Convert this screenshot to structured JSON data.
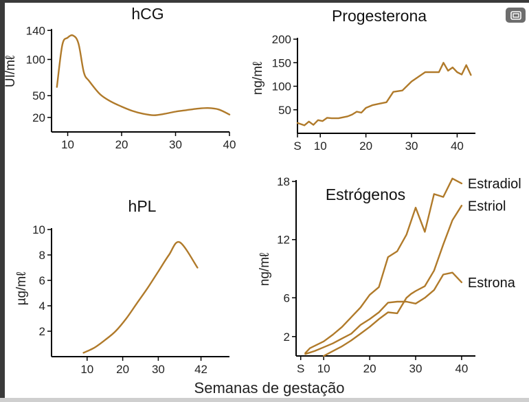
{
  "xlabel": "Semanas de gestação",
  "line_color": "#b07a2a",
  "overlay_button": {
    "icon": "picture-in-picture-icon"
  },
  "chart_data": [
    {
      "id": "hcg",
      "type": "line",
      "title": "hCG",
      "ylabel": "UI/mℓ",
      "xlim": [
        7,
        40
      ],
      "ylim": [
        0,
        145
      ],
      "xticks": [
        10,
        20,
        30,
        40
      ],
      "xtick_labels": [
        "10",
        "20",
        "30",
        "40"
      ],
      "yticks": [
        20,
        50,
        100,
        140
      ],
      "ytick_labels": [
        "20",
        "50",
        "100",
        "140"
      ],
      "series": [
        {
          "label": "",
          "x": [
            8,
            9,
            10,
            11,
            12,
            13,
            14,
            16,
            18,
            20,
            22,
            24,
            26,
            28,
            30,
            32,
            34,
            36,
            38,
            40
          ],
          "y": [
            62,
            120,
            130,
            133,
            122,
            82,
            70,
            52,
            42,
            35,
            29,
            25,
            23,
            25,
            28,
            30,
            32,
            33,
            31,
            24
          ]
        }
      ]
    },
    {
      "id": "progesterona",
      "type": "line",
      "title": "Progesterona",
      "ylabel": "ng/mℓ",
      "xlim": [
        5,
        44
      ],
      "ylim": [
        0,
        200
      ],
      "xticks": [
        5,
        10,
        20,
        30,
        40
      ],
      "xtick_labels": [
        "S",
        "10",
        "20",
        "30",
        "40"
      ],
      "yticks": [
        50,
        100,
        150,
        200
      ],
      "ytick_labels": [
        "50",
        "100",
        "150",
        "200"
      ],
      "series": [
        {
          "label": "",
          "x": [
            5,
            6.5,
            7.5,
            8.5,
            9.5,
            10.5,
            11.5,
            12.5,
            14,
            16,
            17,
            18,
            19,
            20,
            21.5,
            23,
            24.5,
            26,
            28,
            30,
            33,
            36,
            37,
            38,
            39,
            40,
            41,
            42,
            43
          ],
          "y": [
            22,
            17,
            25,
            18,
            28,
            26,
            33,
            32,
            32,
            36,
            40,
            46,
            44,
            54,
            60,
            63,
            66,
            88,
            91,
            110,
            130,
            130,
            150,
            133,
            140,
            130,
            125,
            145,
            124
          ]
        }
      ]
    },
    {
      "id": "hpl",
      "type": "line",
      "title": "hPL",
      "ylabel": "µg/mℓ",
      "xlim": [
        0,
        50
      ],
      "ylim": [
        0,
        10
      ],
      "xticks": [
        10,
        20,
        30,
        42
      ],
      "xtick_labels": [
        "10",
        "20",
        "30",
        "42"
      ],
      "yticks": [
        2,
        4,
        6,
        8,
        10
      ],
      "ytick_labels": [
        "2",
        "4",
        "6",
        "8",
        "10"
      ],
      "series": [
        {
          "label": "",
          "x": [
            9,
            12,
            15,
            18,
            21,
            24,
            27,
            30,
            33,
            36,
            41
          ],
          "y": [
            0.3,
            0.7,
            1.3,
            2.0,
            3.0,
            4.2,
            5.4,
            6.7,
            8.0,
            9.0,
            7.0
          ]
        }
      ]
    },
    {
      "id": "estrogenos",
      "type": "line",
      "title": "Estrógenos",
      "ylabel": "ng/mℓ",
      "xlim": [
        4,
        43
      ],
      "ylim": [
        0,
        18.5
      ],
      "xticks": [
        5,
        10,
        20,
        30,
        40
      ],
      "xtick_labels": [
        "S",
        "10",
        "20",
        "30",
        "40"
      ],
      "yticks": [
        2,
        6,
        12,
        18
      ],
      "ytick_labels": [
        "2",
        "6",
        "12",
        "18"
      ],
      "series": [
        {
          "label": "Estradiol",
          "x": [
            6,
            7,
            10,
            12,
            14,
            16,
            18,
            20,
            22,
            24,
            26,
            28,
            30,
            32,
            34,
            36,
            38,
            40
          ],
          "y": [
            0.3,
            0.8,
            1.5,
            2.2,
            3.0,
            4.0,
            5.0,
            6.3,
            7.1,
            10.2,
            10.8,
            12.5,
            15.3,
            12.8,
            16.7,
            16.4,
            18.3,
            17.8
          ]
        },
        {
          "label": "Estriol",
          "x": [
            10,
            12,
            14,
            16,
            18,
            20,
            22,
            24,
            26,
            28,
            29,
            30,
            32,
            34,
            36,
            38,
            40
          ],
          "y": [
            0,
            0.5,
            1.0,
            1.6,
            2.3,
            3.0,
            3.8,
            4.5,
            4.4,
            6.0,
            6.4,
            6.7,
            7.2,
            8.8,
            11.5,
            14.0,
            15.5
          ]
        },
        {
          "label": "Estrona",
          "x": [
            6,
            8,
            10,
            12,
            14,
            16,
            18,
            20,
            22,
            24,
            26,
            28,
            30,
            32,
            34,
            36,
            38,
            40
          ],
          "y": [
            0.2,
            0.5,
            0.9,
            1.3,
            1.8,
            2.3,
            3.2,
            3.8,
            4.5,
            5.5,
            5.6,
            5.6,
            5.4,
            6.0,
            6.8,
            8.4,
            8.6,
            7.6
          ]
        }
      ]
    }
  ]
}
